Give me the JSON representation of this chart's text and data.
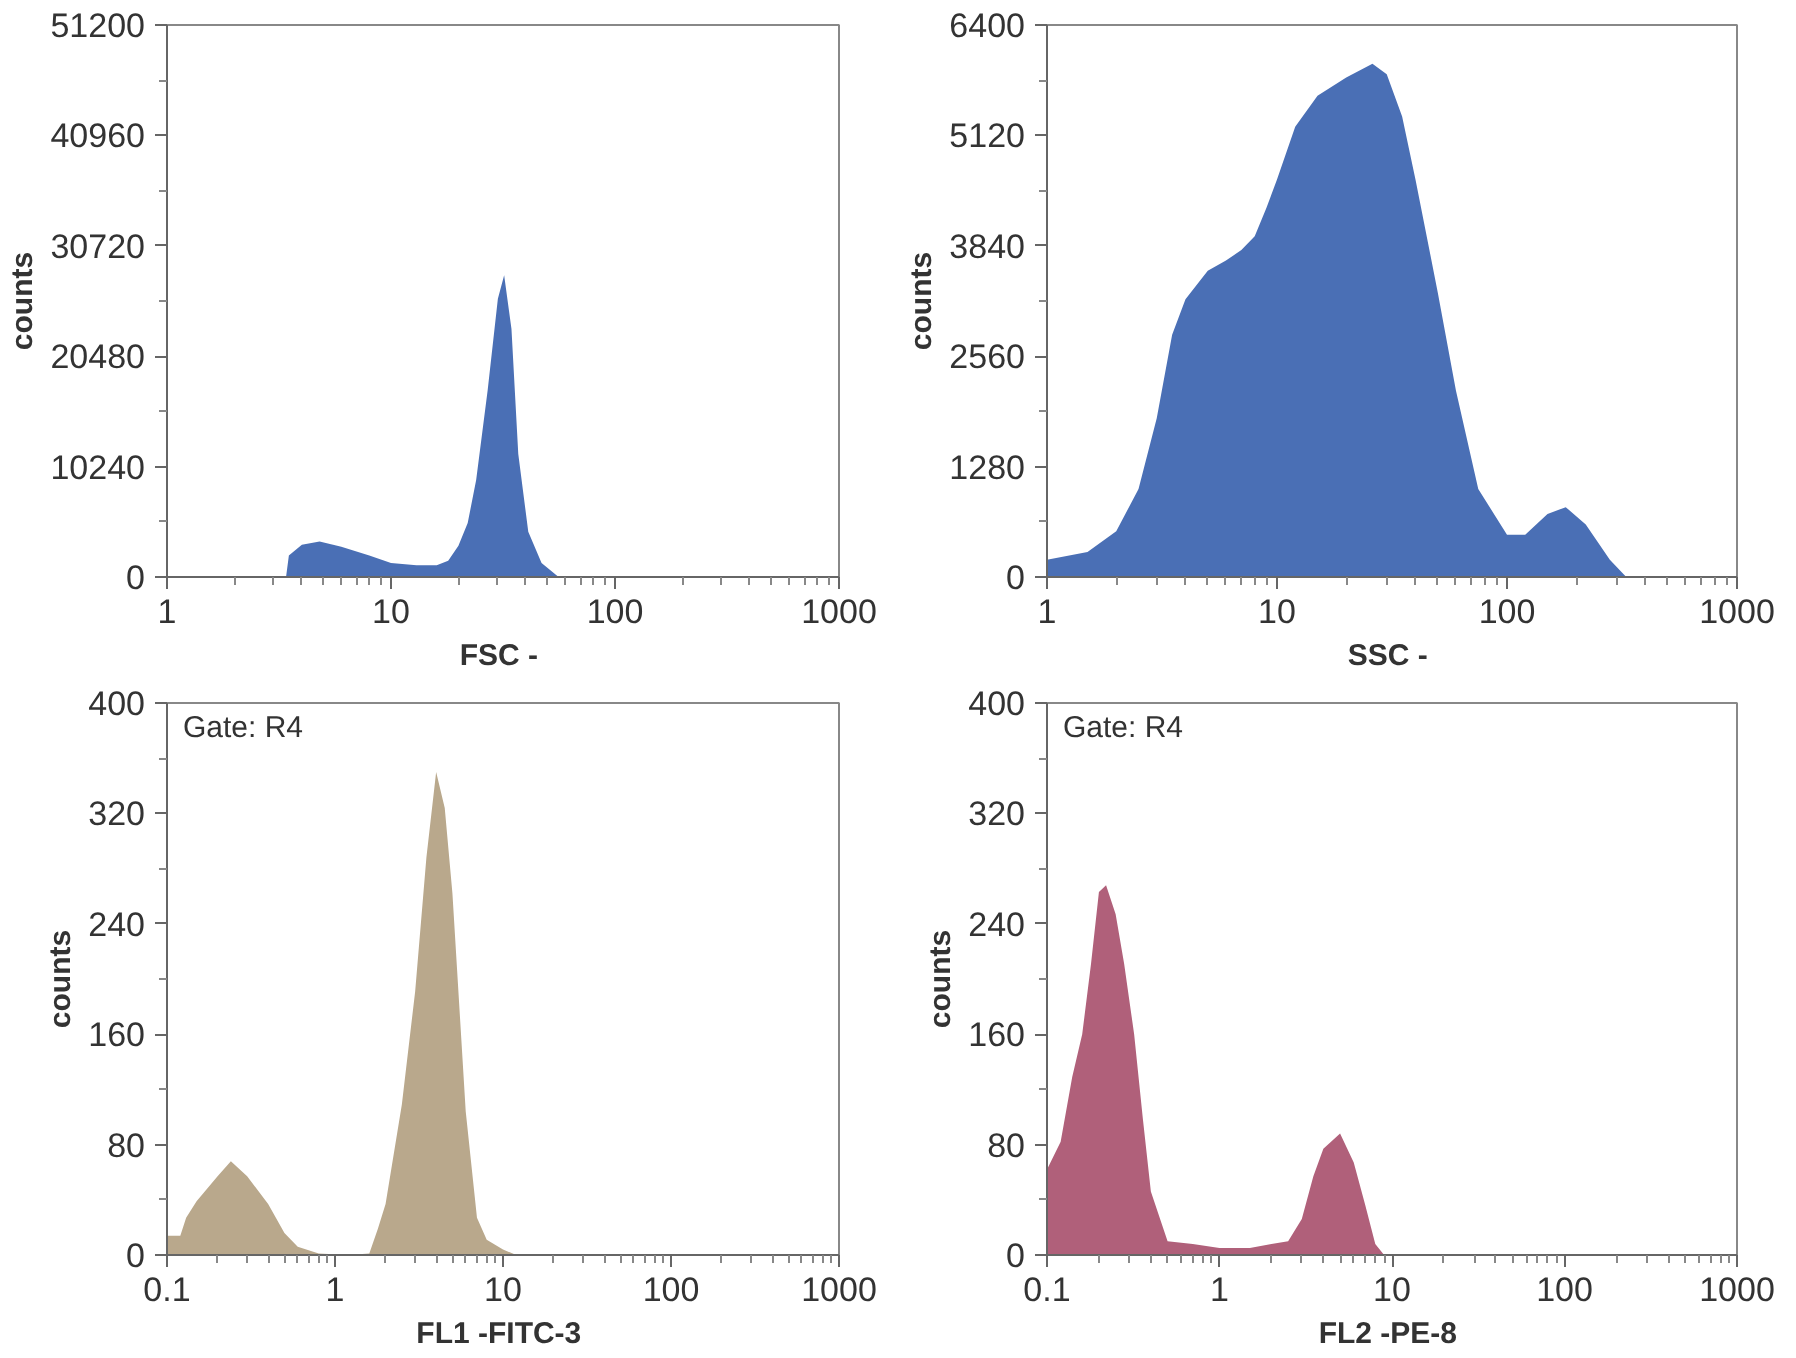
{
  "chart_data": [
    {
      "type": "area",
      "xlabel": "FSC  -",
      "ylabel": "counts",
      "log": "x",
      "grid": false,
      "color": "#4a6fb5",
      "xlim": [
        1,
        1000
      ],
      "xticks": [
        1,
        10,
        100,
        1000
      ],
      "ylim": [
        0,
        51200
      ],
      "yticks": [
        0,
        10240,
        20480,
        30720,
        40960,
        51200
      ],
      "x": [
        3.4,
        3.5,
        4,
        4.8,
        6,
        8,
        10,
        13,
        16,
        18,
        20,
        22,
        24,
        27,
        30,
        32,
        34.5,
        37,
        41,
        47,
        56
      ],
      "values": [
        0,
        2000,
        3000,
        3300,
        2800,
        2000,
        1300,
        1100,
        1100,
        1500,
        2900,
        5000,
        9000,
        17300,
        25800,
        28000,
        23000,
        11400,
        4200,
        1300,
        0
      ]
    },
    {
      "type": "area",
      "xlabel": "SSC  -",
      "ylabel": "counts",
      "log": "x",
      "grid": false,
      "color": "#4a6fb5",
      "xlim": [
        1,
        1000
      ],
      "xticks": [
        1,
        10,
        100,
        1000
      ],
      "ylim": [
        0,
        6400
      ],
      "yticks": [
        0,
        1280,
        2560,
        3840,
        5120,
        6400
      ],
      "x": [
        1,
        1.5,
        2,
        2.5,
        3,
        3.5,
        4,
        5,
        6,
        7,
        8,
        9,
        10,
        12,
        15,
        20,
        26,
        30,
        35,
        40,
        50,
        60,
        75,
        100,
        120,
        150,
        180,
        220,
        280,
        330
      ],
      "values": [
        200,
        290,
        530,
        1020,
        1840,
        2810,
        3220,
        3550,
        3670,
        3790,
        3950,
        4280,
        4610,
        5220,
        5580,
        5790,
        5950,
        5830,
        5340,
        4610,
        3300,
        2160,
        1020,
        490,
        490,
        730,
        810,
        610,
        200,
        0
      ]
    },
    {
      "type": "area",
      "xlabel": "FL1  -FITC-3",
      "ylabel": "counts",
      "log": "x",
      "grid": false,
      "color": "#b9a88c",
      "annotations": [
        "Gate: R4"
      ],
      "xlim": [
        0.1,
        1000
      ],
      "xticks": [
        0.1,
        1,
        10,
        100,
        1000
      ],
      "ylim": [
        0,
        400
      ],
      "yticks": [
        0,
        80,
        160,
        240,
        320,
        400
      ],
      "x": [
        0.1,
        0.12,
        0.13,
        0.15,
        0.2,
        0.24,
        0.3,
        0.4,
        0.5,
        0.6,
        0.8,
        1.2,
        1.6,
        1.8,
        2,
        2.5,
        3,
        3.5,
        4,
        4.5,
        5,
        6,
        7,
        8,
        10,
        12
      ],
      "values": [
        14,
        14,
        27,
        39,
        57,
        68,
        57,
        37,
        16,
        6,
        1,
        0,
        1,
        19,
        37,
        109,
        191,
        288,
        350,
        324,
        262,
        104,
        27,
        11,
        4,
        0
      ]
    },
    {
      "type": "area",
      "xlabel": "FL2  -PE-8",
      "ylabel": "counts",
      "log": "x",
      "grid": false,
      "color": "#b0607a",
      "annotations": [
        "Gate: R4"
      ],
      "xlim": [
        0.1,
        1000
      ],
      "xticks": [
        0.1,
        1,
        10,
        100,
        1000
      ],
      "ylim": [
        0,
        400
      ],
      "yticks": [
        0,
        80,
        160,
        240,
        320,
        400
      ],
      "x": [
        0.1,
        0.12,
        0.14,
        0.16,
        0.18,
        0.2,
        0.22,
        0.25,
        0.28,
        0.32,
        0.36,
        0.4,
        0.5,
        0.7,
        1,
        1.5,
        2,
        2.5,
        3,
        3.5,
        4,
        5,
        6,
        7,
        8,
        9
      ],
      "values": [
        62,
        82,
        129,
        160,
        211,
        263,
        268,
        247,
        211,
        160,
        98,
        46,
        10,
        8,
        5,
        5,
        8,
        10,
        26,
        57,
        77,
        88,
        67,
        36,
        8,
        0
      ]
    }
  ]
}
